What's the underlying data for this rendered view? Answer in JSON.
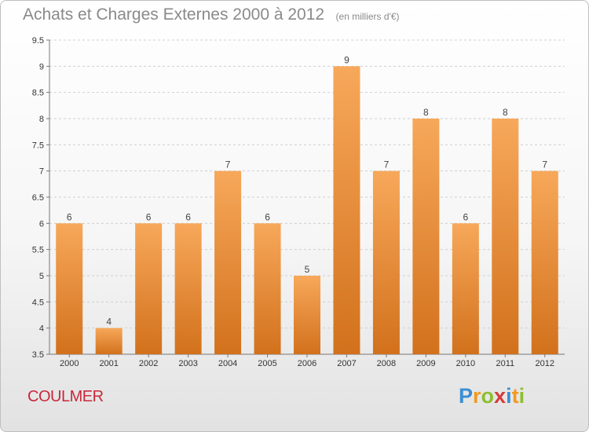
{
  "chart_data": {
    "type": "bar",
    "title": "Achats et Charges Externes 2000 à 2012",
    "subtitle": "(en milliers d'€)",
    "xlabel": "",
    "ylabel": "",
    "categories": [
      "2000",
      "2001",
      "2002",
      "2003",
      "2004",
      "2005",
      "2006",
      "2007",
      "2008",
      "2009",
      "2010",
      "2011",
      "2012"
    ],
    "values": [
      6,
      4,
      6,
      6,
      7,
      6,
      5,
      9,
      7,
      8,
      6,
      8,
      7
    ],
    "data_labels": [
      "6",
      "4",
      "6",
      "6",
      "7",
      "6",
      "5",
      "9",
      "7",
      "8",
      "6",
      "8",
      "7"
    ],
    "ylim": [
      3.5,
      9.5
    ],
    "yticks": [
      "3.5",
      "4",
      "4.5",
      "5",
      "5.5",
      "6",
      "6.5",
      "7",
      "7.5",
      "8",
      "8.5",
      "9",
      "9.5"
    ],
    "grid": "horizontal dashed",
    "legend": "none",
    "bar_color_top": "#f7a85a",
    "bar_color_bottom": "#d2711c"
  },
  "footer": {
    "town": "COULMER",
    "brand_letters": [
      "P",
      "r",
      "o",
      "x",
      "i",
      "t",
      "i"
    ]
  },
  "colors": {
    "title": "#8a8a8a",
    "town": "#c8283a",
    "brand": [
      "#3b8fd3",
      "#f29a1e",
      "#8cbf2e",
      "#d63a3a",
      "#3b8fd3",
      "#f29a1e",
      "#8cbf2e"
    ]
  }
}
